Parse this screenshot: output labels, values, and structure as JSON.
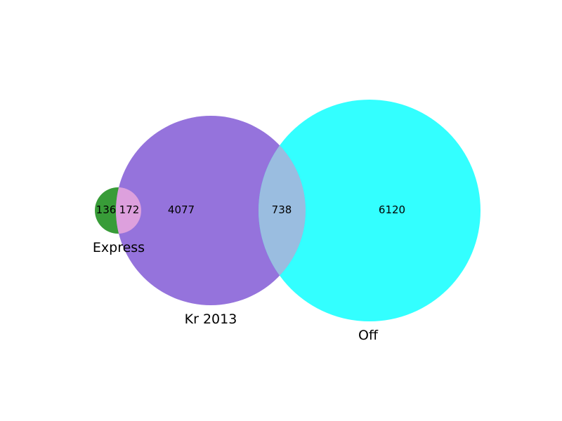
{
  "chart_data": {
    "type": "venn",
    "title": "",
    "sets": [
      {
        "name": "Express",
        "color": "#008000"
      },
      {
        "name": "Kr 2013",
        "color": "#9370DB"
      },
      {
        "name": "Off",
        "color": "#00FFFF"
      }
    ],
    "regions": [
      {
        "sets": [
          "Express"
        ],
        "value": 136
      },
      {
        "sets": [
          "Express",
          "Kr 2013"
        ],
        "value": 172
      },
      {
        "sets": [
          "Kr 2013"
        ],
        "value": 4077
      },
      {
        "sets": [
          "Kr 2013",
          "Off"
        ],
        "value": 738
      },
      {
        "sets": [
          "Off"
        ],
        "value": 6120
      }
    ],
    "colors": {
      "express_kr_overlap": "#DDA0DD",
      "kr_off_overlap": "#9ABDE0"
    }
  }
}
